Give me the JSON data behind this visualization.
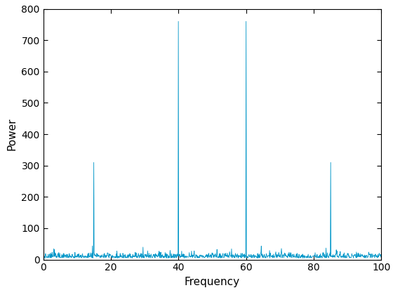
{
  "title": "",
  "xlabel": "Frequency",
  "ylabel": "Power",
  "xlim": [
    0,
    100
  ],
  "ylim": [
    0,
    800
  ],
  "xticks": [
    0,
    20,
    40,
    60,
    80,
    100
  ],
  "yticks": [
    0,
    100,
    200,
    300,
    400,
    500,
    600,
    700,
    800
  ],
  "line_color": "#0096c8",
  "background_color": "#ffffff",
  "figsize": [
    5.6,
    4.2
  ],
  "dpi": 100,
  "peaks": [
    {
      "freq": 15,
      "power": 310
    },
    {
      "freq": 40,
      "power": 760
    },
    {
      "freq": 60,
      "power": 760
    },
    {
      "freq": 85,
      "power": 310
    }
  ],
  "noise_amplitude": 8,
  "noise_mean": 5,
  "n_points": 1024,
  "seed": 7
}
